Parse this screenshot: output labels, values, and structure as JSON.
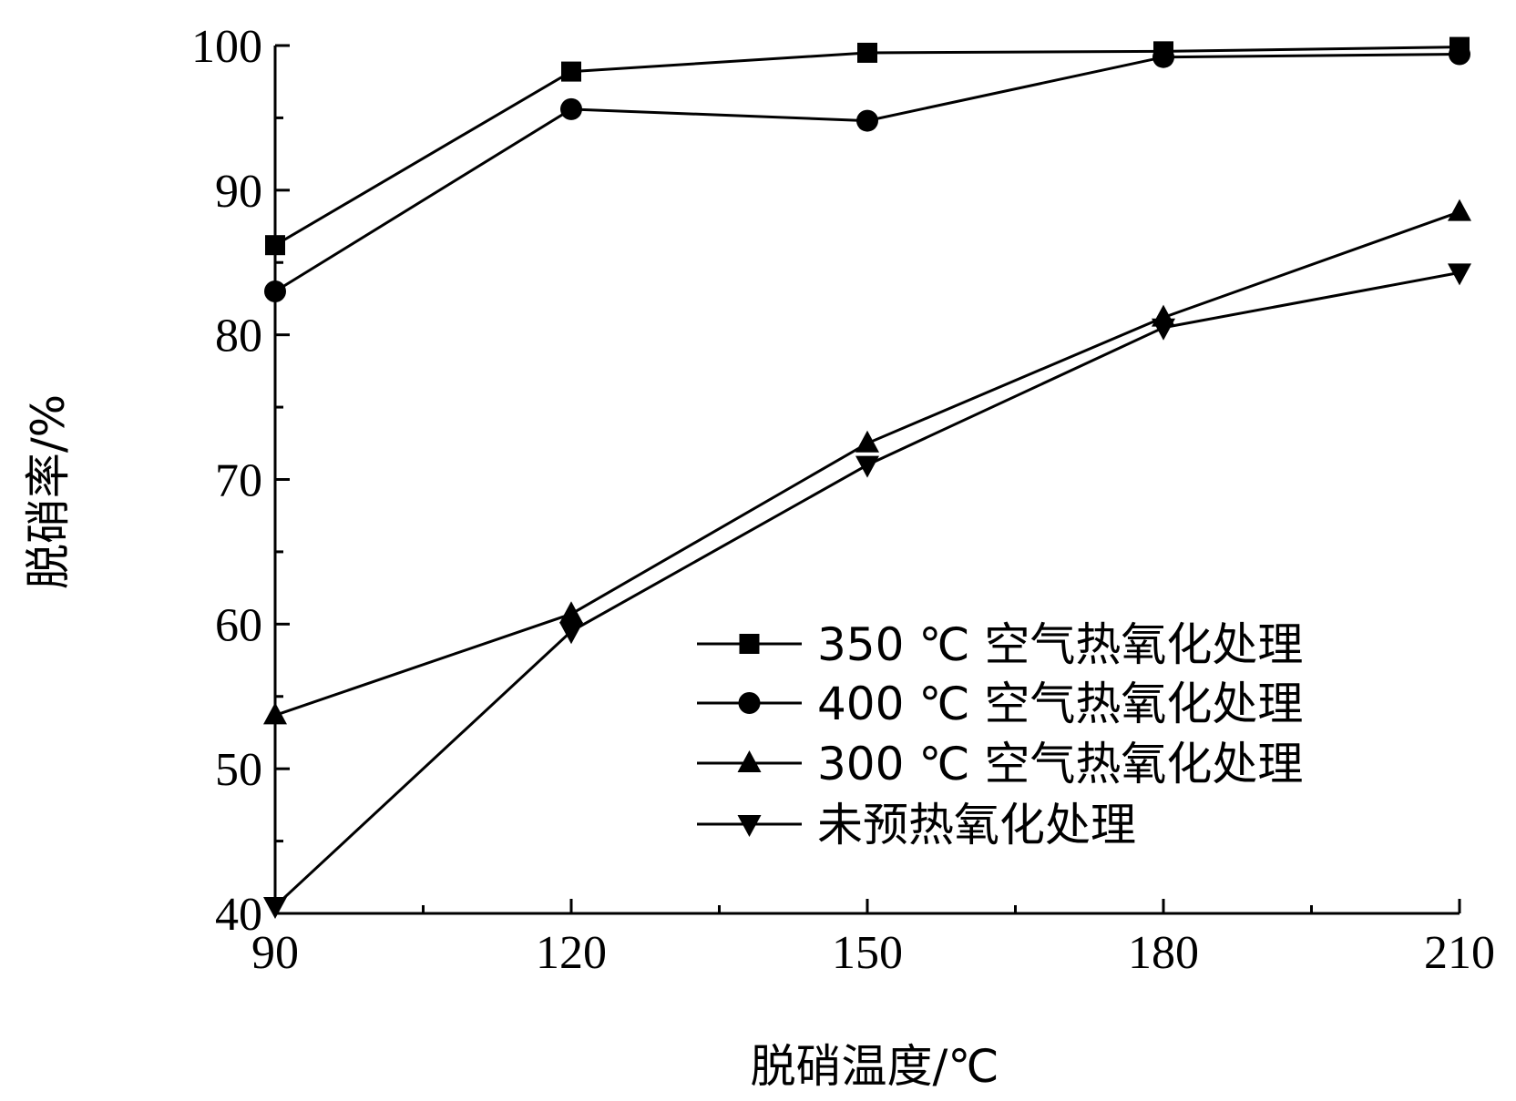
{
  "chart_data": {
    "type": "line",
    "title": "",
    "xlabel": "脱硝温度/℃",
    "ylabel": "脱硝率/%",
    "x": [
      90,
      120,
      150,
      180,
      210
    ],
    "xlim": [
      90,
      210
    ],
    "ylim": [
      40,
      100
    ],
    "xticks": [
      "90",
      "120",
      "150",
      "180",
      "210"
    ],
    "yticks": [
      "40",
      "50",
      "60",
      "70",
      "80",
      "90",
      "100"
    ],
    "grid": false,
    "legend_position": "lower-right",
    "series": [
      {
        "name": "350 ℃ 空气热氧化处理",
        "marker": "square",
        "values": [
          86.2,
          98.2,
          99.5,
          99.6,
          99.9
        ]
      },
      {
        "name": "400 ℃ 空气热氧化处理",
        "marker": "circle",
        "values": [
          83.0,
          95.6,
          94.8,
          99.2,
          99.4
        ]
      },
      {
        "name": "300 ℃ 空气热氧化处理",
        "marker": "triangle-up",
        "values": [
          53.7,
          60.7,
          72.5,
          81.2,
          88.5
        ]
      },
      {
        "name": "未预热氧化处理",
        "marker": "triangle-down",
        "values": [
          40.5,
          59.5,
          71.0,
          80.5,
          84.3
        ]
      }
    ]
  }
}
